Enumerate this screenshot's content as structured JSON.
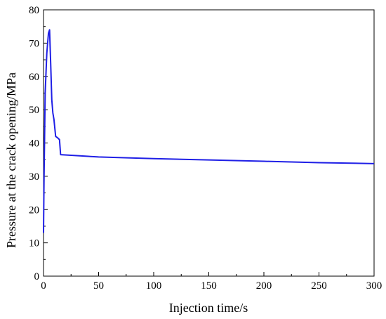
{
  "chart_data": {
    "type": "line",
    "title": "",
    "xlabel": "Injection time/s",
    "ylabel": "Pressure at the crack opening/MPa",
    "xlim": [
      0,
      300
    ],
    "ylim": [
      0,
      80
    ],
    "x_ticks": [
      0,
      50,
      100,
      150,
      200,
      250,
      300
    ],
    "y_ticks": [
      0,
      10,
      20,
      30,
      40,
      50,
      60,
      70,
      80
    ],
    "grid": false,
    "legend": "none",
    "series": [
      {
        "color": "#1f1fe6",
        "x": [
          0,
          0.5,
          1.5,
          3,
          4.5,
          5.5,
          6.5,
          7.5,
          8.5,
          9.5,
          11,
          13,
          14.5,
          15.5,
          25,
          50,
          100,
          150,
          200,
          250,
          300
        ],
        "y": [
          13,
          30,
          55,
          67,
          73,
          74,
          64,
          53,
          49,
          47,
          42,
          41.5,
          41,
          36.5,
          36.3,
          35.8,
          35.3,
          34.9,
          34.5,
          34.1,
          33.8
        ]
      }
    ]
  }
}
